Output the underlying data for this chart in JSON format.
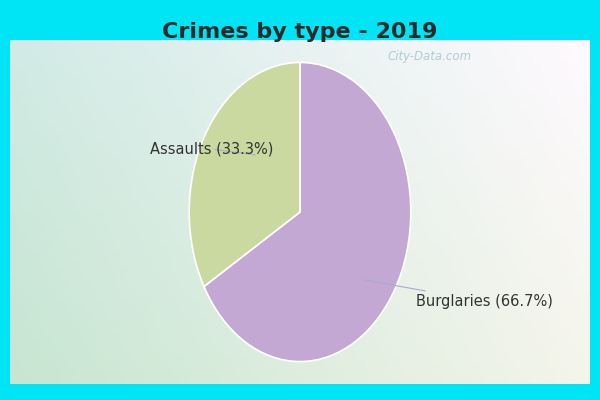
{
  "title": "Crimes by type - 2019",
  "slices": [
    {
      "label": "Burglaries",
      "pct": 66.7,
      "color": "#c4a8d4"
    },
    {
      "label": "Assaults",
      "pct": 33.3,
      "color": "#cad9a0"
    }
  ],
  "bg_cyan": "#00e5f5",
  "bg_grad_bottom_left": "#c8ecd4",
  "bg_grad_top_right": "#d8f2f0",
  "title_fontsize": 16,
  "label_fontsize": 10.5,
  "watermark": "City-Data.com",
  "title_color": "#2a2a2a"
}
